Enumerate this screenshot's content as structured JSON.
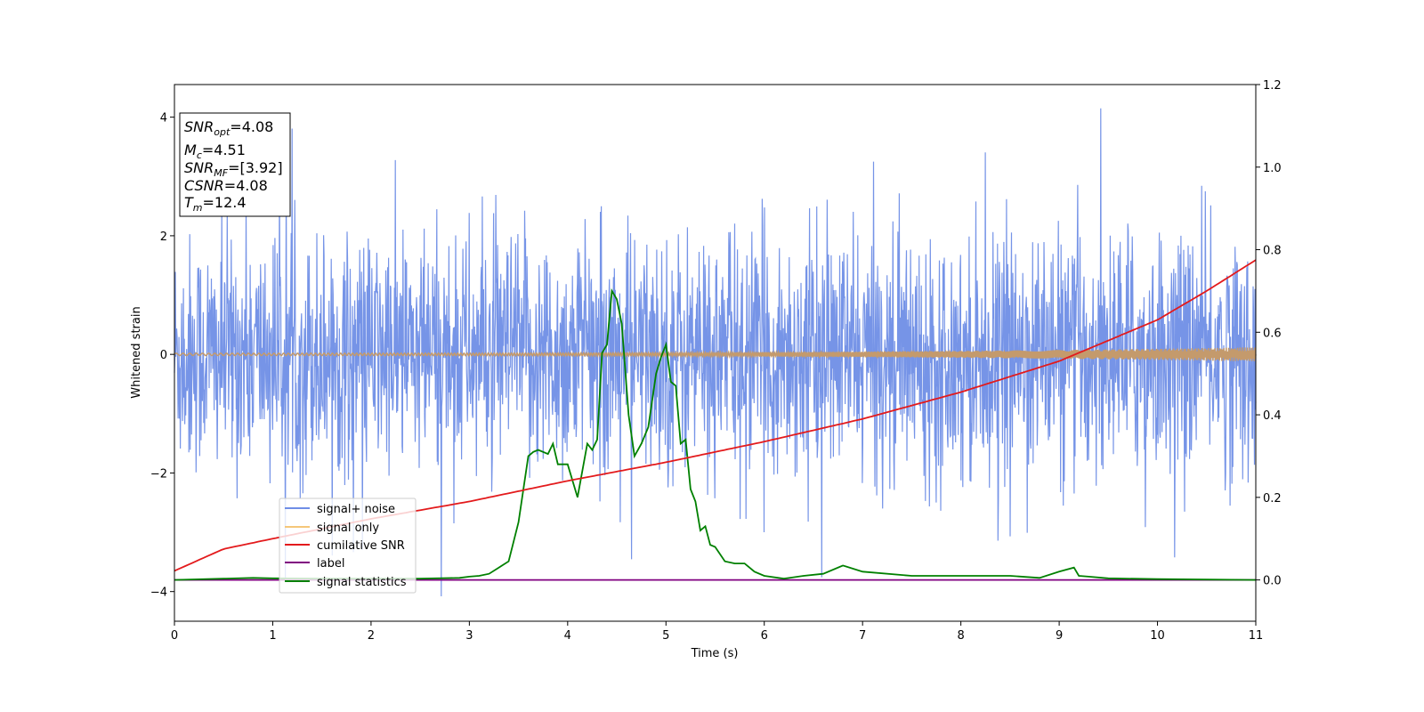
{
  "chart_data": {
    "type": "line",
    "xlabel": "Time (s)",
    "ylabel": "Whitened strain",
    "xlim": [
      0,
      11
    ],
    "ylim": [
      -4.5,
      4.55
    ],
    "y2lim": [
      -0.1,
      1.2
    ],
    "x_ticks": [
      "0",
      "1",
      "2",
      "3",
      "4",
      "5",
      "6",
      "7",
      "8",
      "9",
      "10",
      "11"
    ],
    "y_ticks": [
      "4",
      "2",
      "0",
      "−2",
      "−4"
    ],
    "y_tick_values": [
      4,
      2,
      0,
      -2,
      -4
    ],
    "y2_ticks": [
      "1.2",
      "1.0",
      "0.8",
      "0.6",
      "0.4",
      "0.2",
      "0.0"
    ],
    "y2_tick_values": [
      1.2,
      1.0,
      0.8,
      0.6,
      0.4,
      0.2,
      0.0
    ],
    "grid": false,
    "legend_position": "lower-left",
    "info_box": {
      "snr_opt_main": "SNR",
      "snr_opt_sub": "opt",
      "snr_opt_value": "=4.08",
      "mc_main": "M",
      "mc_sub": "c",
      "mc_value": "=4.51",
      "snr_mf_main": "SNR",
      "snr_mf_sub": "MF",
      "snr_mf_value": "=[3.92]",
      "csnr_main": "CSNR",
      "csnr_value": "=4.08",
      "tm_main": "T",
      "tm_sub": "m",
      "tm_value": "=12.4"
    },
    "series": [
      {
        "name": "signal+ noise",
        "color": "#6f8ee6",
        "axis": "left",
        "approx_range": [
          -4.1,
          4.15
        ]
      },
      {
        "name": "signal only",
        "color": "#f5c77a",
        "axis": "left",
        "amplitude_start": 0.02,
        "amplitude_end": 0.12
      },
      {
        "name": "cumilative SNR",
        "color": "#e31a1c",
        "axis": "right",
        "x": [
          0,
          0.5,
          1,
          2,
          3,
          4,
          5,
          6,
          7,
          8,
          9,
          9.5,
          10,
          10.5,
          11
        ],
        "y": [
          0.022,
          0.075,
          0.1,
          0.148,
          0.19,
          0.24,
          0.285,
          0.335,
          0.39,
          0.455,
          0.53,
          0.58,
          0.63,
          0.7,
          0.775
        ]
      },
      {
        "name": "label",
        "color": "#800080",
        "axis": "right",
        "x": [
          0,
          11
        ],
        "y": [
          0.0,
          0.0
        ]
      },
      {
        "name": "signal statistics",
        "color": "#008000",
        "axis": "right",
        "x": [
          0,
          0.5,
          0.8,
          1.0,
          1.5,
          2.0,
          2.5,
          2.9,
          3.0,
          3.1,
          3.2,
          3.3,
          3.4,
          3.5,
          3.6,
          3.65,
          3.7,
          3.8,
          3.85,
          3.9,
          4.0,
          4.1,
          4.2,
          4.25,
          4.3,
          4.35,
          4.4,
          4.45,
          4.5,
          4.55,
          4.62,
          4.68,
          4.75,
          4.82,
          4.9,
          4.95,
          5.0,
          5.05,
          5.1,
          5.15,
          5.2,
          5.25,
          5.3,
          5.35,
          5.4,
          5.45,
          5.5,
          5.6,
          5.7,
          5.8,
          5.9,
          6.0,
          6.2,
          6.4,
          6.6,
          6.8,
          7.0,
          7.5,
          8.0,
          8.5,
          8.8,
          9.0,
          9.15,
          9.2,
          9.3,
          9.5,
          10.0,
          10.5,
          11.0
        ],
        "y": [
          0.0,
          0.003,
          0.005,
          0.004,
          0.003,
          0.003,
          0.003,
          0.005,
          0.008,
          0.01,
          0.015,
          0.03,
          0.045,
          0.14,
          0.3,
          0.31,
          0.315,
          0.305,
          0.33,
          0.28,
          0.28,
          0.2,
          0.33,
          0.315,
          0.34,
          0.55,
          0.57,
          0.7,
          0.68,
          0.62,
          0.4,
          0.3,
          0.33,
          0.37,
          0.5,
          0.54,
          0.57,
          0.48,
          0.47,
          0.33,
          0.34,
          0.22,
          0.19,
          0.12,
          0.13,
          0.085,
          0.08,
          0.045,
          0.04,
          0.04,
          0.02,
          0.01,
          0.003,
          0.01,
          0.015,
          0.035,
          0.02,
          0.01,
          0.01,
          0.01,
          0.005,
          0.02,
          0.03,
          0.01,
          0.008,
          0.004,
          0.002,
          0.001,
          0.0
        ]
      }
    ]
  }
}
